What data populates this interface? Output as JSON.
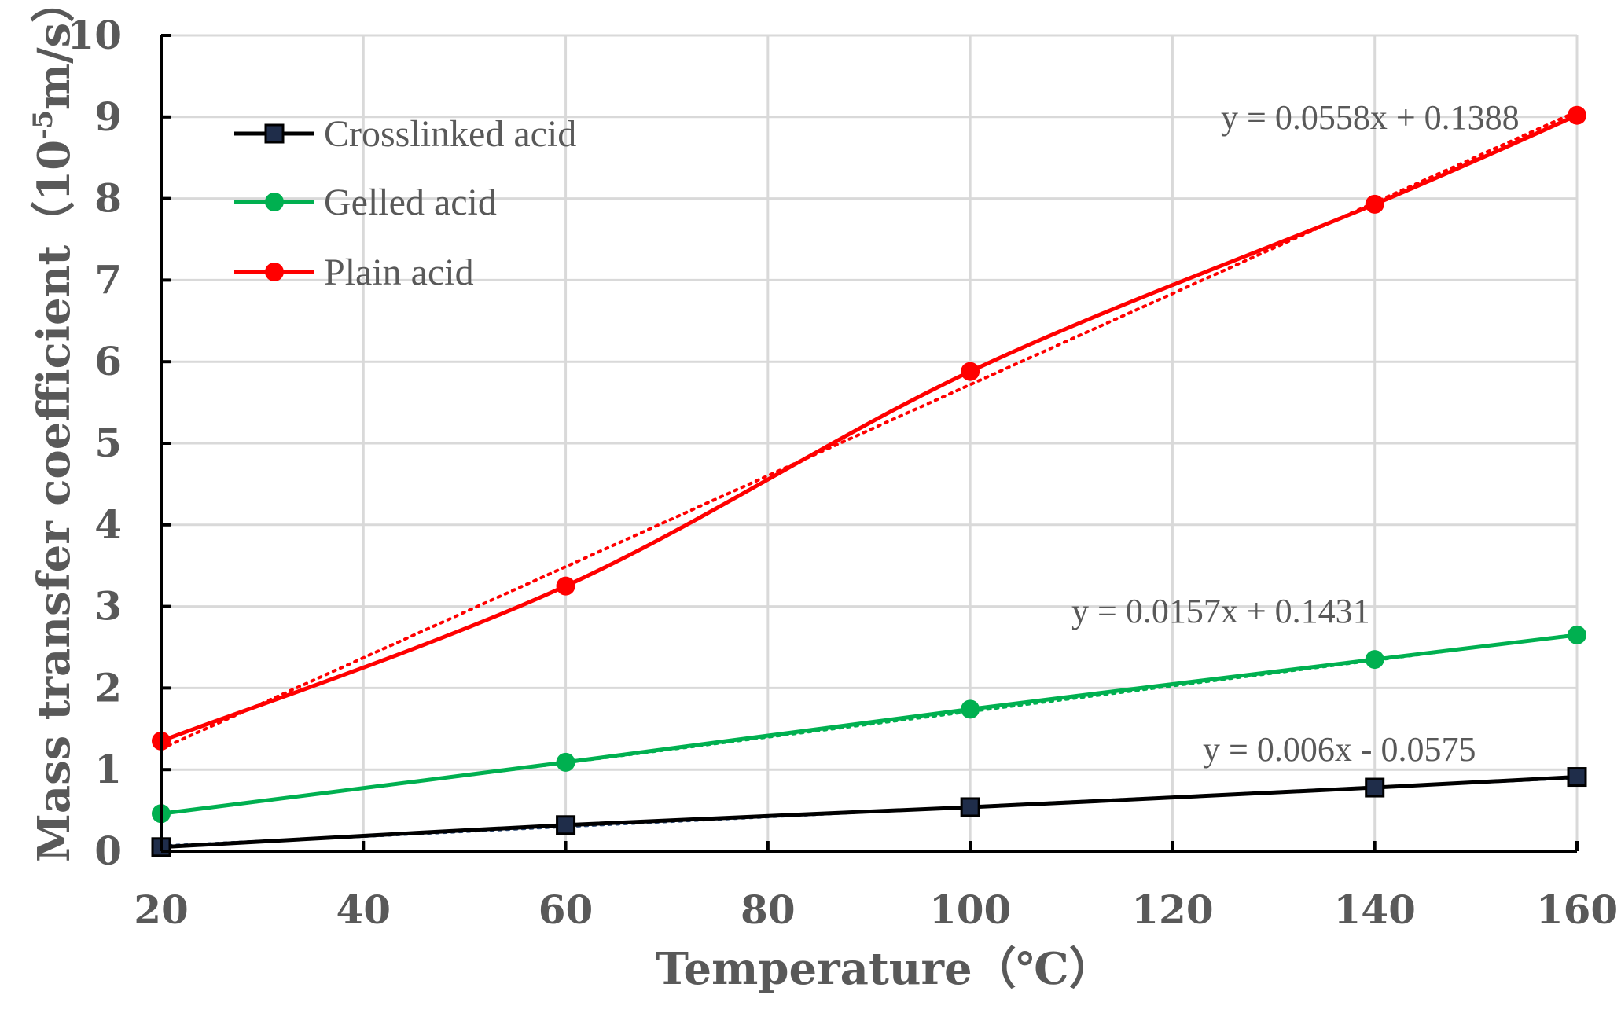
{
  "chart_data": {
    "type": "line",
    "xlabel": "Temperature（℃）",
    "ylabel_main": "Mass transfer coefficient（10",
    "ylabel_exp": "-5",
    "ylabel_tail": "m/s）",
    "xlim": [
      20,
      160
    ],
    "ylim": [
      0,
      10
    ],
    "x_ticks": [
      20,
      40,
      60,
      80,
      100,
      120,
      140,
      160
    ],
    "y_ticks": [
      0,
      1,
      2,
      3,
      4,
      5,
      6,
      7,
      8,
      9,
      10
    ],
    "grid": true,
    "legend_position": "top-left",
    "x": [
      20,
      60,
      100,
      140,
      160
    ],
    "series": [
      {
        "name": "Crosslinked acid",
        "marker": "square",
        "color": "#000000",
        "marker_fill": "#1f2d4a",
        "values": [
          0.05,
          0.32,
          0.54,
          0.78,
          0.91
        ],
        "trendline": {
          "slope": 0.006,
          "intercept": -0.0575,
          "color": "#2e4d7b",
          "equation": "y = 0.006x - 0.0575"
        }
      },
      {
        "name": "Gelled acid",
        "marker": "circle",
        "color": "#00b050",
        "marker_fill": "#00b050",
        "values": [
          0.46,
          1.09,
          1.74,
          2.35,
          2.65
        ],
        "trendline": {
          "slope": 0.0157,
          "intercept": 0.1431,
          "color": "#00b050",
          "equation": "y = 0.0157x + 0.1431"
        }
      },
      {
        "name": "Plain acid",
        "marker": "circle",
        "color": "#ff0000",
        "marker_fill": "#ff0000",
        "values": [
          1.35,
          3.25,
          5.88,
          7.93,
          9.02
        ],
        "trendline": {
          "slope": 0.0558,
          "intercept": 0.1388,
          "color": "#ff0000",
          "equation": "y = 0.0558x + 0.1388"
        }
      }
    ]
  }
}
